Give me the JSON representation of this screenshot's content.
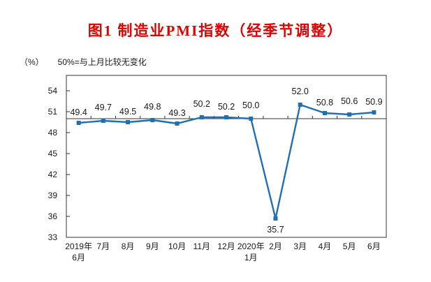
{
  "figure": {
    "title": "图1  制造业PMI指数（经季节调整）",
    "title_color": "#e00000",
    "unit_label": "（%）",
    "note": "50%=与上月比较无变化"
  },
  "chart_data": {
    "type": "line",
    "title": "图1  制造业PMI指数（经季节调整）",
    "xlabel": "",
    "ylabel": "（%）",
    "legend": "none",
    "grid": false,
    "marker": "square",
    "line_color": "#1f6fb5",
    "axis_color": "#333333",
    "categories": [
      [
        "2019年",
        "6月"
      ],
      [
        "7月"
      ],
      [
        "8月"
      ],
      [
        "9月"
      ],
      [
        "10月"
      ],
      [
        "11月"
      ],
      [
        "12月"
      ],
      [
        "2020年",
        "1月"
      ],
      [
        "2月"
      ],
      [
        "3月"
      ],
      [
        "4月"
      ],
      [
        "5月"
      ],
      [
        "6月"
      ]
    ],
    "values": [
      49.4,
      49.7,
      49.5,
      49.8,
      49.3,
      50.2,
      50.2,
      50.0,
      35.7,
      52.0,
      50.8,
      50.6,
      50.9
    ],
    "yticks": [
      33,
      36,
      39,
      42,
      45,
      48,
      51,
      54
    ],
    "ylim": [
      33,
      56.2
    ],
    "baseline": 50
  }
}
